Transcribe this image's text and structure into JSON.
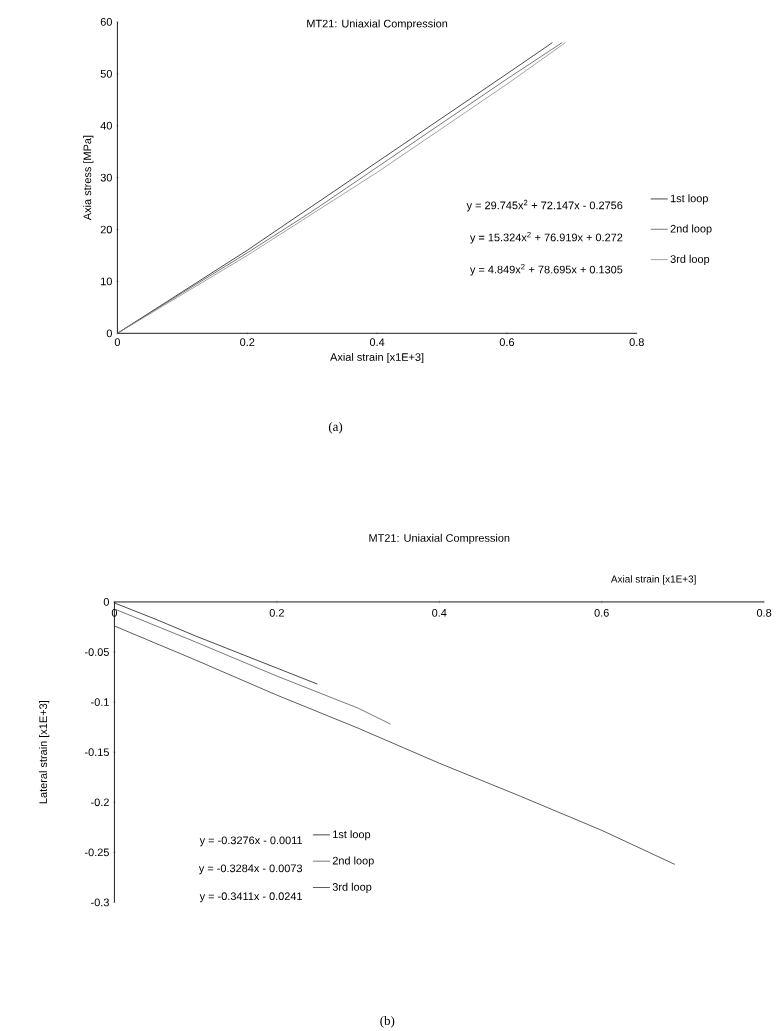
{
  "chart_data": [
    {
      "type": "line",
      "title": "MT21: Uniaxial Compression",
      "xlabel": "Axial strain [x1E+3]",
      "ylabel": "Axia stress [MPa]",
      "series": [
        {
          "name": "1st loop",
          "color": "#1a1a1a",
          "x": [
            0,
            0.1,
            0.2,
            0.3,
            0.4,
            0.5,
            0.6,
            0.67
          ],
          "values": [
            0,
            8,
            16,
            24.5,
            33,
            41.5,
            50,
            56
          ]
        },
        {
          "name": "2nd loop",
          "color": "#555555",
          "x": [
            0,
            0.1,
            0.2,
            0.3,
            0.4,
            0.5,
            0.6,
            0.685
          ],
          "values": [
            0,
            7.8,
            15.5,
            23.5,
            32,
            40.5,
            49,
            56
          ]
        },
        {
          "name": "3rd loop",
          "color": "#8a8a8a",
          "x": [
            0,
            0.1,
            0.2,
            0.3,
            0.4,
            0.5,
            0.6,
            0.69
          ],
          "values": [
            0,
            7.5,
            15,
            23,
            31,
            39.5,
            48,
            56
          ]
        }
      ],
      "xlim": [
        0,
        0.8
      ],
      "ylim": [
        0,
        60
      ],
      "xticks": [
        0,
        0.2,
        0.4,
        0.6,
        0.8
      ],
      "yticks": [
        0,
        10,
        20,
        30,
        40,
        50,
        60
      ],
      "legend": "right",
      "marker": "none",
      "line_style": "solid",
      "annotations": [
        "y = 29.745x$^{2}$ + 72.147x - 0.2756",
        "y = 15.324x$^{2}$ + 76.919x + 0.272",
        "y = 4.849x$^{2}$ + 78.695x + 0.1305",
        "(a)"
      ]
    },
    {
      "type": "line",
      "title": "MT21: Uniaxial Compression",
      "xlabel": "Axial strain [x1E+3]",
      "ylabel": "Lateral strain [x1E+3]",
      "series": [
        {
          "name": "1st loop",
          "color": "#1a1a1a",
          "x": [
            0,
            0.05,
            0.1,
            0.15,
            0.2,
            0.25
          ],
          "values": [
            -0.001,
            -0.017,
            -0.034,
            -0.05,
            -0.066,
            -0.082
          ]
        },
        {
          "name": "2nd loop",
          "color": "#555555",
          "x": [
            0,
            0.1,
            0.2,
            0.3,
            0.34
          ],
          "values": [
            -0.007,
            -0.04,
            -0.074,
            -0.106,
            -0.122
          ]
        },
        {
          "name": "3rd loop",
          "color": "#333333",
          "x": [
            0,
            0.1,
            0.2,
            0.3,
            0.4,
            0.5,
            0.6,
            0.69
          ],
          "values": [
            -0.024,
            -0.058,
            -0.093,
            -0.126,
            -0.161,
            -0.194,
            -0.228,
            -0.262
          ]
        }
      ],
      "xlim": [
        0,
        0.8
      ],
      "ylim": [
        -0.3,
        0
      ],
      "xticks": [
        0,
        0.2,
        0.4,
        0.6,
        0.8
      ],
      "yticks": [
        0,
        -0.05,
        -0.1,
        -0.15,
        -0.2,
        -0.25,
        -0.3
      ],
      "legend": "bottom left",
      "marker": "none",
      "line_style": "solid",
      "annotations": [
        "y = -0.3276x - 0.0011",
        "y = -0.3284x - 0.0073",
        "y = -0.3411x - 0.0241",
        "(b)"
      ]
    }
  ]
}
